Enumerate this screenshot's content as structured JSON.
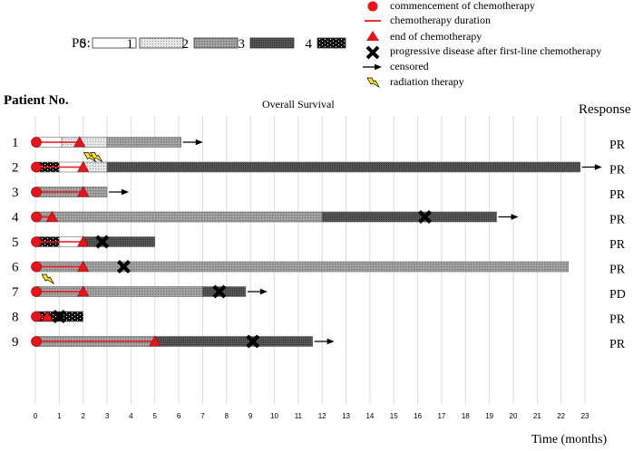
{
  "legend": {
    "ps_label": "PS:",
    "ps_levels": [
      "0",
      "1",
      "2",
      "3",
      "4"
    ],
    "items": [
      {
        "icon": "red-circle-icon",
        "label": "commencement of chemotherapy"
      },
      {
        "icon": "red-line-icon",
        "label": "chemotherapy duration"
      },
      {
        "icon": "red-triangle-icon",
        "label": "end of chemotherapy"
      },
      {
        "icon": "black-x-icon",
        "label": "progressive disease after first-line chemotherapy"
      },
      {
        "icon": "arrow-icon",
        "label": "censored"
      },
      {
        "icon": "lightning-icon",
        "label": "radiation therapy"
      }
    ]
  },
  "headers": {
    "patient": "Patient No.",
    "title": "Overall Survival",
    "response": "Response",
    "xlabel": "Time (months)"
  },
  "colors": {
    "chemo": "#e8141a",
    "ps0": "#ffffff",
    "ps1": "#dcdcdc",
    "ps2": "#8c8c8c",
    "ps3": "#4f4f4f",
    "ps4": "#111111",
    "lightning": "#f2e21c",
    "grid": "#dddddd"
  },
  "chart_data": {
    "type": "swimmer",
    "title": "Overall Survival",
    "xlabel": "Time (months)",
    "xlim": [
      0,
      23
    ],
    "xticks": [
      0,
      1,
      2,
      3,
      4,
      5,
      6,
      7,
      8,
      9,
      10,
      11,
      12,
      13,
      14,
      15,
      16,
      17,
      18,
      19,
      20,
      21,
      22,
      23
    ],
    "grid": true,
    "patients": [
      {
        "id": "1",
        "response": "PR",
        "segments": [
          {
            "start": 0,
            "end": 1.1,
            "ps": 0
          },
          {
            "start": 1.1,
            "end": 3.0,
            "ps": 1
          },
          {
            "start": 3.0,
            "end": 6.1,
            "ps": 2
          }
        ],
        "chemo_end": 1.85,
        "progression": null,
        "censored": true,
        "radiation": null
      },
      {
        "id": "2",
        "response": "PR",
        "segments": [
          {
            "start": 0,
            "end": 1.0,
            "ps": 4
          },
          {
            "start": 1.0,
            "end": 2.0,
            "ps": 0
          },
          {
            "start": 2.0,
            "end": 3.0,
            "ps": 1
          },
          {
            "start": 3.0,
            "end": 22.8,
            "ps": 3
          }
        ],
        "chemo_end": 2.0,
        "progression": null,
        "censored": true,
        "radiation": 2.3
      },
      {
        "id": "3",
        "response": "PR",
        "segments": [
          {
            "start": 0,
            "end": 3.0,
            "ps": 2
          }
        ],
        "chemo_end": 2.0,
        "progression": null,
        "censored": true,
        "radiation": null
      },
      {
        "id": "4",
        "response": "PR",
        "segments": [
          {
            "start": 0,
            "end": 12.0,
            "ps": 2
          },
          {
            "start": 12.0,
            "end": 19.3,
            "ps": 3
          }
        ],
        "chemo_end": 0.7,
        "progression": 16.3,
        "censored": true,
        "radiation": null
      },
      {
        "id": "5",
        "response": "PR",
        "segments": [
          {
            "start": 0,
            "end": 1.0,
            "ps": 4
          },
          {
            "start": 1.0,
            "end": 2.0,
            "ps": 0
          },
          {
            "start": 2.0,
            "end": 5.0,
            "ps": 3
          }
        ],
        "chemo_end": 2.0,
        "progression": 2.8,
        "censored": false,
        "radiation": null
      },
      {
        "id": "6",
        "response": "PR",
        "segments": [
          {
            "start": 0,
            "end": 22.3,
            "ps": 2
          }
        ],
        "chemo_end": 2.0,
        "progression": 3.7,
        "censored": false,
        "radiation": null
      },
      {
        "id": "7",
        "response": "PD",
        "segments": [
          {
            "start": 0,
            "end": 7.0,
            "ps": 2
          },
          {
            "start": 7.0,
            "end": 8.8,
            "ps": 3
          }
        ],
        "chemo_end": 2.0,
        "progression": 7.7,
        "censored": true,
        "radiation": 0.5
      },
      {
        "id": "8",
        "response": "PR",
        "segments": [
          {
            "start": 0,
            "end": 2.0,
            "ps": 4
          }
        ],
        "chemo_end": 0.5,
        "progression": 1.0,
        "censored": false,
        "radiation": null
      },
      {
        "id": "9",
        "response": "PR",
        "segments": [
          {
            "start": 0,
            "end": 5.0,
            "ps": 2
          },
          {
            "start": 5.0,
            "end": 11.6,
            "ps": 3
          }
        ],
        "chemo_end": 5.0,
        "progression": 9.1,
        "censored": true,
        "radiation": null
      }
    ]
  }
}
